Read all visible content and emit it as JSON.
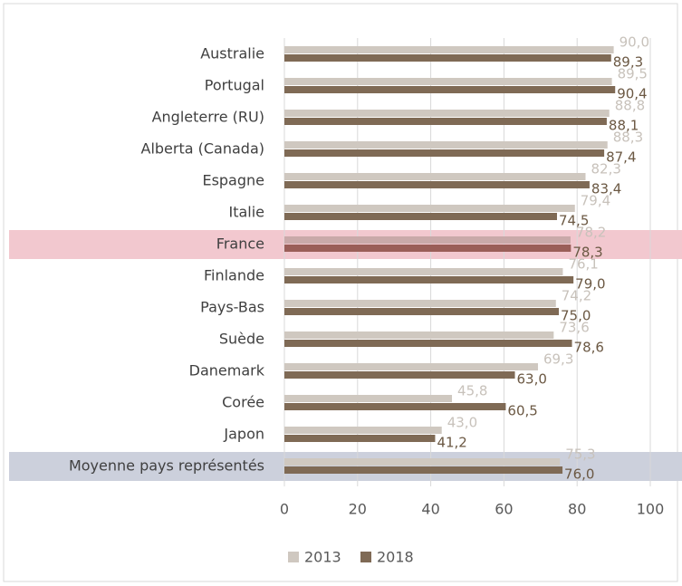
{
  "chart_data": {
    "type": "bar",
    "orientation": "horizontal",
    "categories": [
      "Australie",
      "Portugal",
      "Angleterre (RU)",
      "Alberta (Canada)",
      "Espagne",
      "Italie",
      "France",
      "Finlande",
      "Pays-Bas",
      "Suède",
      "Danemark",
      "Corée",
      "Japon",
      "Moyenne pays représentés"
    ],
    "series": [
      {
        "name": "2013",
        "color": "#cfc8c0",
        "values": [
          90.0,
          89.5,
          88.8,
          88.3,
          82.3,
          79.4,
          78.2,
          76.1,
          74.2,
          73.6,
          69.3,
          45.8,
          43.0,
          75.3
        ],
        "value_labels": [
          "90,0",
          "89,5",
          "88,8",
          "88,3",
          "82,3",
          "79,4",
          "78,2",
          "76,1",
          "74,2",
          "73,6",
          "69,3",
          "45,8",
          "43,0",
          "75,3"
        ]
      },
      {
        "name": "2018",
        "color": "#7f6a55",
        "values": [
          89.3,
          90.4,
          88.1,
          87.4,
          83.4,
          74.5,
          78.3,
          79.0,
          75.0,
          78.6,
          63.0,
          60.5,
          41.2,
          76.0
        ],
        "value_labels": [
          "89,3",
          "90,4",
          "88,1",
          "87,4",
          "83,4",
          "74,5",
          "78,3",
          "79,0",
          "75,0",
          "78,6",
          "63,0",
          "60,5",
          "41,2",
          "76,0"
        ]
      }
    ],
    "xlim": [
      0,
      100
    ],
    "xticks": [
      0,
      20,
      40,
      60,
      80,
      100
    ],
    "grid": true
  }
}
